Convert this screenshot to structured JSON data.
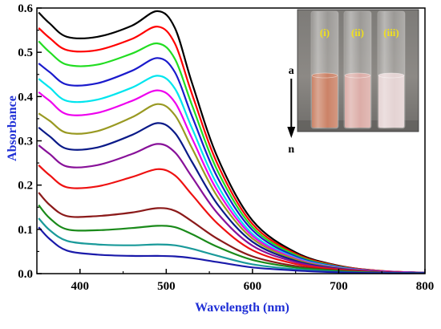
{
  "chart_data": {
    "type": "line",
    "xlabel": "Wavelength (nm)",
    "ylabel": "Absorbance",
    "label_color": "#1f2fd6",
    "xlim": [
      350,
      800
    ],
    "ylim": [
      0.0,
      0.6
    ],
    "x_ticks": [
      400,
      500,
      600,
      700,
      800
    ],
    "y_ticks": [
      0.0,
      0.1,
      0.2,
      0.3,
      0.4,
      0.5,
      0.6
    ],
    "x_tick_labels": [
      "400",
      "500",
      "600",
      "700",
      "800"
    ],
    "y_tick_labels": [
      "0.0",
      "0.1",
      "0.2",
      "0.3",
      "0.4",
      "0.5",
      "0.6"
    ],
    "grid": false,
    "legend": "none",
    "annotation": {
      "start_label": "a",
      "end_label": "n",
      "at_wavelength": 645
    },
    "inset": {
      "kind": "photo",
      "position": "top-right",
      "vial_labels": [
        "(i)",
        "(ii)",
        "(iii)"
      ],
      "vial_label_color": "#f0e01c",
      "liquid_colors": [
        "#c7785a",
        "#d9a6a0",
        "#e2cfcf"
      ]
    },
    "series": [
      {
        "color": "#000000",
        "x": [
          352,
          365,
          385,
          420,
          460,
          490,
          510,
          530,
          560,
          600,
          650,
          700,
          750,
          800
        ],
        "y": [
          0.59,
          0.565,
          0.535,
          0.535,
          0.56,
          0.593,
          0.555,
          0.43,
          0.26,
          0.12,
          0.048,
          0.018,
          0.006,
          0.002
        ]
      },
      {
        "color": "#ff0000",
        "x": [
          352,
          365,
          385,
          420,
          460,
          490,
          510,
          530,
          560,
          600,
          650,
          700,
          750,
          800
        ],
        "y": [
          0.555,
          0.532,
          0.505,
          0.505,
          0.53,
          0.558,
          0.52,
          0.405,
          0.245,
          0.112,
          0.045,
          0.017,
          0.006,
          0.002
        ]
      },
      {
        "color": "#22dd22",
        "x": [
          352,
          365,
          385,
          420,
          460,
          490,
          510,
          530,
          560,
          600,
          650,
          700,
          750,
          800
        ],
        "y": [
          0.525,
          0.5,
          0.472,
          0.472,
          0.497,
          0.52,
          0.485,
          0.38,
          0.23,
          0.105,
          0.042,
          0.016,
          0.005,
          0.002
        ]
      },
      {
        "color": "#1a1acc",
        "x": [
          352,
          365,
          385,
          420,
          460,
          490,
          510,
          530,
          560,
          600,
          650,
          700,
          750,
          800
        ],
        "y": [
          0.475,
          0.455,
          0.427,
          0.43,
          0.458,
          0.487,
          0.455,
          0.355,
          0.215,
          0.098,
          0.039,
          0.015,
          0.005,
          0.002
        ]
      },
      {
        "color": "#00e5ee",
        "x": [
          352,
          365,
          385,
          420,
          460,
          490,
          510,
          530,
          560,
          600,
          650,
          700,
          750,
          800
        ],
        "y": [
          0.44,
          0.42,
          0.39,
          0.393,
          0.42,
          0.447,
          0.418,
          0.328,
          0.198,
          0.09,
          0.036,
          0.014,
          0.005,
          0.002
        ]
      },
      {
        "color": "#ee00ee",
        "x": [
          352,
          365,
          385,
          420,
          460,
          490,
          510,
          530,
          560,
          600,
          650,
          700,
          750,
          800
        ],
        "y": [
          0.41,
          0.39,
          0.36,
          0.363,
          0.39,
          0.414,
          0.387,
          0.305,
          0.185,
          0.085,
          0.034,
          0.013,
          0.005,
          0.002
        ]
      },
      {
        "color": "#999922",
        "x": [
          352,
          365,
          385,
          420,
          460,
          490,
          510,
          530,
          560,
          600,
          650,
          700,
          750,
          800
        ],
        "y": [
          0.362,
          0.345,
          0.318,
          0.322,
          0.353,
          0.383,
          0.358,
          0.283,
          0.172,
          0.079,
          0.032,
          0.012,
          0.004,
          0.002
        ]
      },
      {
        "color": "#0a1a88",
        "x": [
          352,
          365,
          385,
          420,
          460,
          490,
          510,
          530,
          560,
          600,
          650,
          700,
          750,
          800
        ],
        "y": [
          0.33,
          0.31,
          0.282,
          0.285,
          0.313,
          0.34,
          0.318,
          0.252,
          0.155,
          0.072,
          0.029,
          0.011,
          0.004,
          0.002
        ]
      },
      {
        "color": "#881199",
        "x": [
          352,
          365,
          385,
          420,
          460,
          490,
          510,
          530,
          560,
          600,
          650,
          700,
          750,
          800
        ],
        "y": [
          0.29,
          0.27,
          0.242,
          0.245,
          0.27,
          0.293,
          0.274,
          0.218,
          0.135,
          0.063,
          0.026,
          0.01,
          0.004,
          0.002
        ]
      },
      {
        "color": "#ee1111",
        "x": [
          352,
          365,
          385,
          420,
          460,
          490,
          510,
          530,
          560,
          600,
          650,
          700,
          750,
          800
        ],
        "y": [
          0.245,
          0.222,
          0.195,
          0.197,
          0.218,
          0.236,
          0.222,
          0.178,
          0.112,
          0.053,
          0.022,
          0.009,
          0.003,
          0.001
        ]
      },
      {
        "color": "#8b1a1a",
        "x": [
          352,
          365,
          385,
          420,
          460,
          490,
          510,
          530,
          560,
          600,
          650,
          700,
          750,
          800
        ],
        "y": [
          0.183,
          0.155,
          0.13,
          0.13,
          0.138,
          0.148,
          0.142,
          0.118,
          0.078,
          0.039,
          0.017,
          0.007,
          0.003,
          0.001
        ]
      },
      {
        "color": "#1a8a1a",
        "x": [
          352,
          365,
          385,
          420,
          460,
          490,
          510,
          530,
          560,
          600,
          650,
          700,
          750,
          800
        ],
        "y": [
          0.155,
          0.125,
          0.1,
          0.098,
          0.103,
          0.108,
          0.105,
          0.089,
          0.06,
          0.031,
          0.014,
          0.006,
          0.002,
          0.001
        ]
      },
      {
        "color": "#1a9a9a",
        "x": [
          352,
          365,
          385,
          420,
          460,
          490,
          510,
          530,
          560,
          600,
          650,
          700,
          750,
          800
        ],
        "y": [
          0.125,
          0.098,
          0.074,
          0.066,
          0.064,
          0.066,
          0.064,
          0.056,
          0.04,
          0.021,
          0.01,
          0.004,
          0.002,
          0.001
        ]
      },
      {
        "color": "#1a1aaa",
        "x": [
          352,
          365,
          385,
          420,
          460,
          490,
          510,
          530,
          560,
          600,
          650,
          700,
          750,
          800
        ],
        "y": [
          0.105,
          0.078,
          0.052,
          0.043,
          0.04,
          0.04,
          0.039,
          0.035,
          0.026,
          0.014,
          0.007,
          0.003,
          0.001,
          0.001
        ]
      }
    ]
  }
}
